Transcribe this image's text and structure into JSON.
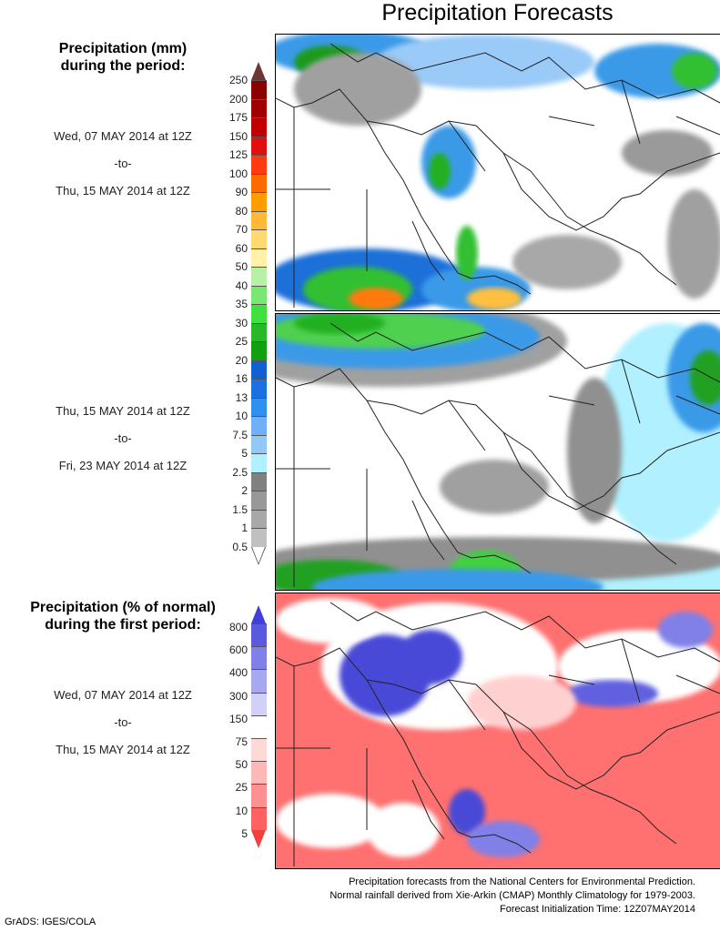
{
  "title": "Precipitation Forecasts",
  "panel1": {
    "heading": [
      "Precipitation (mm)",
      "during the period:"
    ],
    "start": "Wed, 07 MAY 2014 at 12Z",
    "sep": "-to-",
    "end": "Thu, 15 MAY 2014 at 12Z"
  },
  "panel2": {
    "start": "Thu, 15 MAY 2014 at 12Z",
    "sep": "-to-",
    "end": "Fri, 23 MAY 2014 at 12Z"
  },
  "panel3": {
    "heading": [
      "Precipitation (% of normal)",
      "during the first period:"
    ],
    "start": "Wed, 07 MAY 2014 at 12Z",
    "sep": "-to-",
    "end": "Thu, 15 MAY 2014 at 12Z"
  },
  "mm_scale": {
    "labels": [
      "250",
      "200",
      "175",
      "150",
      "125",
      "100",
      "90",
      "80",
      "70",
      "60",
      "50",
      "40",
      "35",
      "30",
      "25",
      "20",
      "16",
      "13",
      "10",
      "7.5",
      "5",
      "2.5",
      "2",
      "1.5",
      "1",
      "0.5"
    ],
    "colors": [
      "#8b0000",
      "#a00000",
      "#c00000",
      "#e01010",
      "#ff3a10",
      "#ff6a00",
      "#ff9c00",
      "#ffb838",
      "#ffd870",
      "#fff2a8",
      "#b8f0a8",
      "#78e870",
      "#40e040",
      "#28b828",
      "#10a010",
      "#1060d0",
      "#1c70e0",
      "#3090f0",
      "#70b0f8",
      "#90c8f8",
      "#b0f0ff",
      "#808080",
      "#989898",
      "#a8a8a8",
      "#c0c0c0"
    ],
    "over_color": "#6a3830",
    "under_color": "#ffffff"
  },
  "pct_scale": {
    "labels": [
      "800",
      "600",
      "400",
      "300",
      "150",
      "75",
      "50",
      "25",
      "10",
      "5"
    ],
    "colors": [
      "#5a5ae0",
      "#8080e8",
      "#a8a8f0",
      "#d0d0f8",
      "#ffffff",
      "#ffd8d8",
      "#ffb8b8",
      "#ff9090",
      "#ff6060"
    ],
    "over_color": "#4040d8",
    "under_color": "#f04040"
  },
  "footer": [
    "Precipitation forecasts from the National Centers for Environmental Prediction.",
    "Normal rainfall derived from Xie-Arkin (CMAP) Monthly Climatology for 1979-2003.",
    "Forecast Initialization Time: 12Z07MAY2014"
  ],
  "credit": "GrADS: IGES/COLA"
}
